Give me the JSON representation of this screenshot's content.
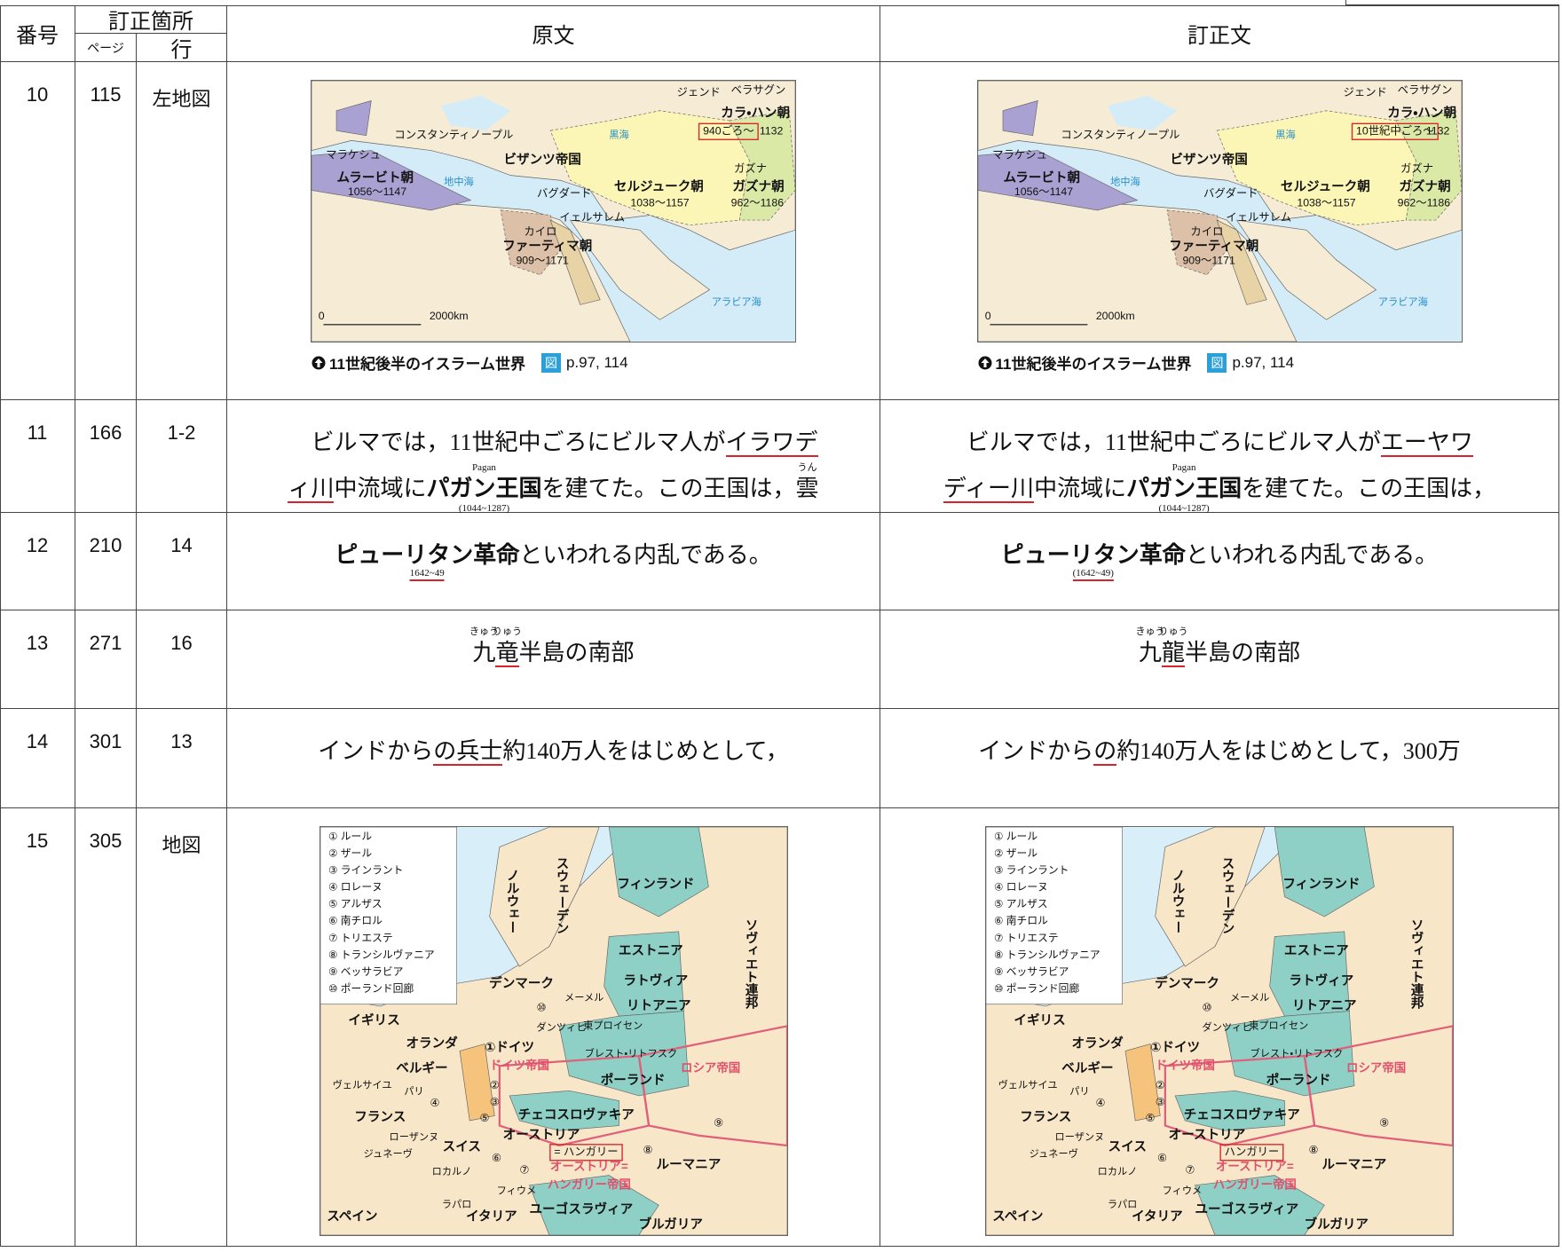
{
  "header": {
    "number": "番号",
    "location": "訂正箇所",
    "page": "ページ",
    "line": "行",
    "original": "原文",
    "corrected": "訂正文"
  },
  "rows": [
    {
      "number": "10",
      "page": "115",
      "line": "左地図",
      "original": {
        "map_labels": [
          "ジェンド",
          "ベラサグン",
          "カラ・ハン朝",
          "940ごろ～",
          "1132",
          "コンスタンティノープル",
          "黒海",
          "マラケシュ",
          "ビザンツ帝国",
          "ムラービト朝",
          "1056～1147",
          "地中海",
          "バグダード",
          "セルジューク朝",
          "1038～1157",
          "ガズナ",
          "ガズナ朝",
          "962～1186",
          "イェルサレム",
          "カイロ",
          "ファーティマ朝",
          "909～1171",
          "アラビア海",
          "0",
          "2000km"
        ],
        "caption": {
          "title": "11世紀後半のイスラーム世界",
          "badge": "図",
          "ref": "p.97, 114"
        }
      },
      "corrected": {
        "map_labels": [
          "ジェンド",
          "ベラサグン",
          "カラ・ハン朝",
          "10世紀中ごろ～",
          "1132",
          "コンスタンティノープル",
          "黒海",
          "マラケシュ",
          "ビザンツ帝国",
          "ムラービト朝",
          "1056～1147",
          "地中海",
          "バグダード",
          "セルジューク朝",
          "1038～1157",
          "ガズナ",
          "ガズナ朝",
          "962～1186",
          "イェルサレム",
          "カイロ",
          "ファーティマ朝",
          "909～1171",
          "アラビア海",
          "0",
          "2000km"
        ],
        "caption": {
          "title": "11世紀後半のイスラーム世界",
          "badge": "図",
          "ref": "p.97, 114"
        }
      }
    },
    {
      "number": "11",
      "page": "166",
      "line": "1-2",
      "original": {
        "lines": [
          [
            {
              "t": "ビルマでは，11世紀中ごろにビルマ人が"
            },
            {
              "t": "イラワデ",
              "ul": true
            }
          ],
          [
            {
              "t": "ィ川",
              "ul": true
            },
            {
              "t": "中流域に"
            },
            {
              "t": "パガン王国",
              "b": true,
              "ruby": "Pagan",
              "sub": "(1044~1287)"
            },
            {
              "t": "を建てた。この王国は，"
            },
            {
              "t": "雲",
              "ruby": "うん"
            }
          ]
        ]
      },
      "corrected": {
        "lines": [
          [
            {
              "t": "ビルマでは，11世紀中ごろにビルマ人が"
            },
            {
              "t": "エーヤワ",
              "ul": true
            }
          ],
          [
            {
              "t": "ディー川",
              "ul": true
            },
            {
              "t": "中流域に"
            },
            {
              "t": "パガン王国",
              "b": true,
              "ruby": "Pagan",
              "sub": "(1044~1287)"
            },
            {
              "t": "を建てた。この王国は，"
            }
          ]
        ]
      }
    },
    {
      "number": "12",
      "page": "210",
      "line": "14",
      "original": {
        "lines": [
          [
            {
              "t": "ピューリタン革命",
              "b": true,
              "sub": "1642~49",
              "sub_ul": true
            },
            {
              "t": "といわれる内乱である。"
            }
          ]
        ]
      },
      "corrected": {
        "lines": [
          [
            {
              "t": "ピューリタン革命",
              "b": true,
              "sub": "(1642~49)",
              "sub_ul": true
            },
            {
              "t": "といわれる内乱である。"
            }
          ]
        ]
      }
    },
    {
      "number": "13",
      "page": "271",
      "line": "16",
      "original": {
        "lines": [
          [
            {
              "t": "九",
              "ruby": "きゅう"
            },
            {
              "t": "竜",
              "ruby": "りゅう",
              "ul": true
            },
            {
              "t": "半島の南部"
            }
          ]
        ]
      },
      "corrected": {
        "lines": [
          [
            {
              "t": "九",
              "ruby": "きゅう"
            },
            {
              "t": "龍",
              "ruby": "りゅう",
              "ul": true
            },
            {
              "t": "半島の南部"
            }
          ]
        ]
      }
    },
    {
      "number": "14",
      "page": "301",
      "line": "13",
      "original": {
        "lines": [
          [
            {
              "t": "インドから"
            },
            {
              "t": "の兵士",
              "ul": true
            },
            {
              "t": "約140万人をはじめとして，"
            }
          ]
        ]
      },
      "corrected": {
        "lines": [
          [
            {
              "t": "インドから"
            },
            {
              "t": "の",
              "ul": true
            },
            {
              "t": "約140万人をはじめとして，300万"
            }
          ]
        ]
      }
    },
    {
      "number": "15",
      "page": "305",
      "line": "地図",
      "original": {
        "map_labels": [
          "① ルール",
          "② ザール",
          "③ ラインラント",
          "④ ロレーヌ",
          "⑤ アルザス",
          "⑥ 南チロル",
          "⑦ トリエステ",
          "⑧ トランシルヴァニア",
          "⑨ ベッサラビア",
          "⑩ ポーランド回廊",
          "ノルウェー",
          "スウェーデン",
          "フィンランド",
          "ソヴィエト連邦",
          "エストニア",
          "ラトヴィア",
          "リトアニア",
          "デンマーク",
          "⑩",
          "メーメル",
          "ダンツィヒ",
          "東プロイセン",
          "イギリス",
          "オランダ",
          "①ドイツ",
          "ドイツ帝国",
          "ベルギー",
          "ヴェルサイユ",
          "パリ",
          "②",
          "③",
          "④",
          "⑤",
          "フランス",
          "ブレスト・リトフスク",
          "ポーランド",
          "ロシア帝国",
          "チェコスロヴァキア",
          "オーストリア",
          "= ハンガリー",
          "⑧",
          "⑨",
          "ローザンヌ",
          "ジュネーヴ",
          "スイス",
          "⑥",
          "ルーマニア",
          "⑦",
          "ロカルノ",
          "オーストリア=",
          "ハンガリー帝国",
          "フィウメ",
          "ラパロ",
          "イタリア",
          "ユーゴスラヴィア",
          "スペイン",
          "ブルガリア"
        ]
      },
      "corrected": {
        "map_labels": [
          "① ルール",
          "② ザール",
          "③ ラインラント",
          "④ ロレーヌ",
          "⑤ アルザス",
          "⑥ 南チロル",
          "⑦ トリエステ",
          "⑧ トランシルヴァニア",
          "⑨ ベッサラビア",
          "⑩ ポーランド回廊",
          "ノルウェー",
          "スウェーデン",
          "フィンランド",
          "ソヴィエト連邦",
          "エストニア",
          "ラトヴィア",
          "リトアニア",
          "デンマーク",
          "⑩",
          "メーメル",
          "ダンツィヒ",
          "東プロイセン",
          "イギリス",
          "オランダ",
          "①ドイツ",
          "ドイツ帝国",
          "ベルギー",
          "ヴェルサイユ",
          "パリ",
          "②",
          "③",
          "④",
          "⑤",
          "フランス",
          "ブレスト・リトフスク",
          "ポーランド",
          "ロシア帝国",
          "チェコスロヴァキア",
          "オーストリア",
          "ハンガリー",
          "⑧",
          "⑨",
          "ローザンヌ",
          "ジュネーヴ",
          "スイス",
          "⑥",
          "ルーマニア",
          "⑦",
          "ロカルノ",
          "オーストリア=",
          "ハンガリー帝国",
          "フィウメ",
          "ラパロ",
          "イタリア",
          "ユーゴスラヴィア",
          "スペイン",
          "ブルガリア"
        ]
      }
    }
  ]
}
